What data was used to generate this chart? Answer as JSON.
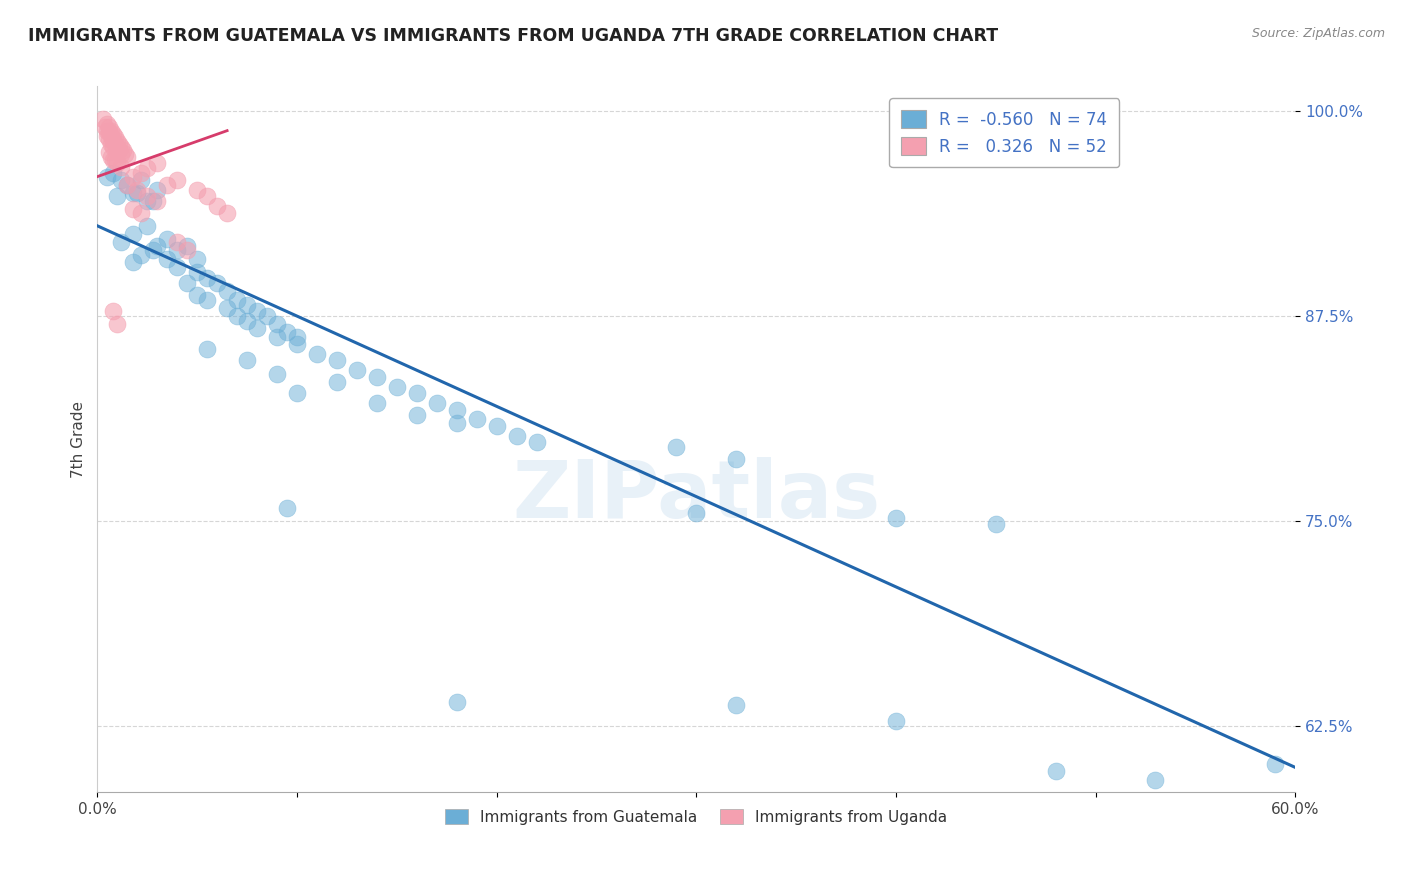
{
  "title": "IMMIGRANTS FROM GUATEMALA VS IMMIGRANTS FROM UGANDA 7TH GRADE CORRELATION CHART",
  "source": "Source: ZipAtlas.com",
  "ylabel": "7th Grade",
  "legend_entries": [
    {
      "label": "Immigrants from Guatemala",
      "color": "#7eb6e8"
    },
    {
      "label": "Immigrants from Uganda",
      "color": "#f4a0b0"
    }
  ],
  "r_values": [
    -0.56,
    0.326
  ],
  "n_values": [
    74,
    52
  ],
  "xlim": [
    0.0,
    0.6
  ],
  "ylim": [
    0.585,
    1.015
  ],
  "yticks": [
    0.625,
    0.75,
    0.875,
    1.0
  ],
  "ytick_labels": [
    "62.5%",
    "75.0%",
    "87.5%",
    "100.0%"
  ],
  "xticks": [
    0.0,
    0.1,
    0.2,
    0.3,
    0.4,
    0.5,
    0.6
  ],
  "xtick_labels": [
    "0.0%",
    "",
    "",
    "",
    "",
    "",
    "60.0%"
  ],
  "watermark": "ZIPatlas",
  "blue_color": "#6baed6",
  "pink_color": "#f4a0b0",
  "blue_line_color": "#2166ac",
  "pink_line_color": "#d63c6b",
  "blue_line_x0": 0.0,
  "blue_line_y0": 0.93,
  "blue_line_x1": 0.6,
  "blue_line_y1": 0.6,
  "pink_line_x0": 0.0,
  "pink_line_y0": 0.96,
  "pink_line_x1": 0.065,
  "pink_line_y1": 0.988,
  "guatemala_points": [
    [
      0.005,
      0.96
    ],
    [
      0.01,
      0.948
    ],
    [
      0.015,
      0.955
    ],
    [
      0.018,
      0.95
    ],
    [
      0.022,
      0.958
    ],
    [
      0.025,
      0.945
    ],
    [
      0.03,
      0.952
    ],
    [
      0.008,
      0.962
    ],
    [
      0.012,
      0.958
    ],
    [
      0.02,
      0.95
    ],
    [
      0.028,
      0.945
    ],
    [
      0.012,
      0.92
    ],
    [
      0.018,
      0.925
    ],
    [
      0.025,
      0.93
    ],
    [
      0.03,
      0.918
    ],
    [
      0.035,
      0.922
    ],
    [
      0.04,
      0.915
    ],
    [
      0.045,
      0.918
    ],
    [
      0.05,
      0.91
    ],
    [
      0.022,
      0.912
    ],
    [
      0.028,
      0.915
    ],
    [
      0.035,
      0.91
    ],
    [
      0.04,
      0.905
    ],
    [
      0.018,
      0.908
    ],
    [
      0.05,
      0.902
    ],
    [
      0.055,
      0.898
    ],
    [
      0.06,
      0.895
    ],
    [
      0.065,
      0.89
    ],
    [
      0.07,
      0.885
    ],
    [
      0.075,
      0.882
    ],
    [
      0.08,
      0.878
    ],
    [
      0.085,
      0.875
    ],
    [
      0.09,
      0.87
    ],
    [
      0.095,
      0.865
    ],
    [
      0.1,
      0.862
    ],
    [
      0.045,
      0.895
    ],
    [
      0.05,
      0.888
    ],
    [
      0.055,
      0.885
    ],
    [
      0.065,
      0.88
    ],
    [
      0.07,
      0.875
    ],
    [
      0.075,
      0.872
    ],
    [
      0.08,
      0.868
    ],
    [
      0.09,
      0.862
    ],
    [
      0.1,
      0.858
    ],
    [
      0.11,
      0.852
    ],
    [
      0.12,
      0.848
    ],
    [
      0.13,
      0.842
    ],
    [
      0.14,
      0.838
    ],
    [
      0.15,
      0.832
    ],
    [
      0.16,
      0.828
    ],
    [
      0.17,
      0.822
    ],
    [
      0.18,
      0.818
    ],
    [
      0.19,
      0.812
    ],
    [
      0.2,
      0.808
    ],
    [
      0.21,
      0.802
    ],
    [
      0.22,
      0.798
    ],
    [
      0.055,
      0.855
    ],
    [
      0.075,
      0.848
    ],
    [
      0.09,
      0.84
    ],
    [
      0.12,
      0.835
    ],
    [
      0.1,
      0.828
    ],
    [
      0.14,
      0.822
    ],
    [
      0.16,
      0.815
    ],
    [
      0.18,
      0.81
    ],
    [
      0.29,
      0.795
    ],
    [
      0.32,
      0.788
    ],
    [
      0.095,
      0.758
    ],
    [
      0.3,
      0.755
    ],
    [
      0.4,
      0.752
    ],
    [
      0.45,
      0.748
    ],
    [
      0.32,
      0.638
    ],
    [
      0.4,
      0.628
    ],
    [
      0.18,
      0.64
    ],
    [
      0.48,
      0.598
    ],
    [
      0.53,
      0.592
    ],
    [
      0.59,
      0.602
    ]
  ],
  "uganda_points": [
    [
      0.003,
      0.995
    ],
    [
      0.004,
      0.99
    ],
    [
      0.005,
      0.992
    ],
    [
      0.005,
      0.988
    ],
    [
      0.005,
      0.985
    ],
    [
      0.006,
      0.99
    ],
    [
      0.006,
      0.987
    ],
    [
      0.006,
      0.983
    ],
    [
      0.007,
      0.988
    ],
    [
      0.007,
      0.985
    ],
    [
      0.007,
      0.98
    ],
    [
      0.008,
      0.986
    ],
    [
      0.008,
      0.982
    ],
    [
      0.008,
      0.978
    ],
    [
      0.009,
      0.984
    ],
    [
      0.009,
      0.98
    ],
    [
      0.01,
      0.982
    ],
    [
      0.01,
      0.978
    ],
    [
      0.01,
      0.975
    ],
    [
      0.011,
      0.98
    ],
    [
      0.011,
      0.976
    ],
    [
      0.012,
      0.978
    ],
    [
      0.012,
      0.974
    ],
    [
      0.013,
      0.976
    ],
    [
      0.014,
      0.974
    ],
    [
      0.015,
      0.972
    ],
    [
      0.006,
      0.975
    ],
    [
      0.007,
      0.972
    ],
    [
      0.008,
      0.97
    ],
    [
      0.009,
      0.97
    ],
    [
      0.01,
      0.968
    ],
    [
      0.012,
      0.966
    ],
    [
      0.025,
      0.965
    ],
    [
      0.03,
      0.968
    ],
    [
      0.018,
      0.96
    ],
    [
      0.022,
      0.962
    ],
    [
      0.04,
      0.958
    ],
    [
      0.035,
      0.955
    ],
    [
      0.015,
      0.955
    ],
    [
      0.02,
      0.952
    ],
    [
      0.05,
      0.952
    ],
    [
      0.055,
      0.948
    ],
    [
      0.025,
      0.948
    ],
    [
      0.03,
      0.945
    ],
    [
      0.06,
      0.942
    ],
    [
      0.065,
      0.938
    ],
    [
      0.018,
      0.94
    ],
    [
      0.022,
      0.938
    ],
    [
      0.04,
      0.92
    ],
    [
      0.045,
      0.915
    ],
    [
      0.008,
      0.878
    ],
    [
      0.01,
      0.87
    ]
  ]
}
